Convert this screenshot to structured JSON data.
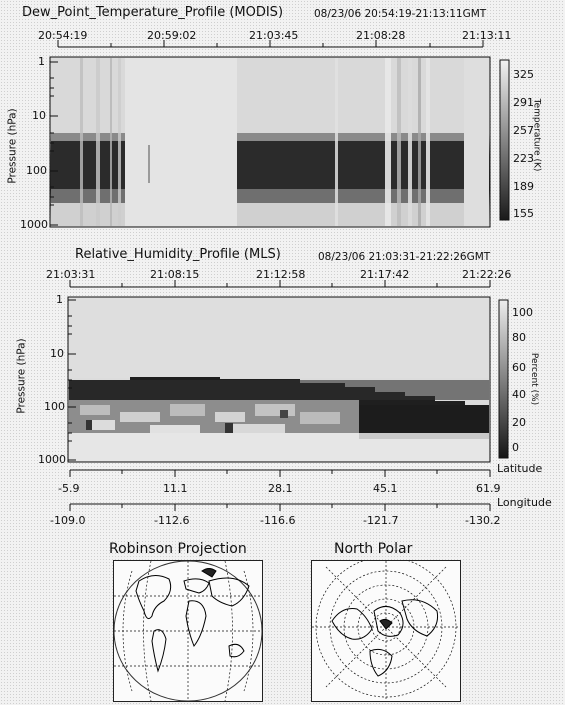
{
  "panel1": {
    "title": "Dew_Point_Temperature_Profile (MODIS)",
    "date_range": "08/23/06 20:54:19-21:13:11GMT",
    "time_ticks": [
      "20:54:19",
      "20:59:02",
      "21:03:45",
      "21:08:28",
      "21:13:11"
    ],
    "ylabel": "Pressure (hPa)",
    "y_ticks": [
      "1",
      "10",
      "100",
      "1000"
    ],
    "colorbar_ticks": [
      "325",
      "291",
      "257",
      "223",
      "189",
      "155"
    ],
    "colorbar_label": "Temperature (K)"
  },
  "panel2": {
    "title": "Relative_Humidity_Profile (MLS)",
    "date_range": "08/23/06 21:03:31-21:22:26GMT",
    "time_ticks": [
      "21:03:31",
      "21:08:15",
      "21:12:58",
      "21:17:42",
      "21:22:26"
    ],
    "ylabel": "Pressure (hPa)",
    "y_ticks": [
      "1",
      "10",
      "100",
      "1000"
    ],
    "colorbar_ticks": [
      "100",
      "80",
      "60",
      "40",
      "20",
      "0"
    ],
    "colorbar_label": "Percent (%)",
    "latitude_label": "Latitude",
    "latitude_ticks": [
      "-5.9",
      "11.1",
      "28.1",
      "45.1",
      "61.9"
    ],
    "longitude_label": "Longitude",
    "longitude_ticks": [
      "-109.0",
      "-112.6",
      "-116.6",
      "-121.7",
      "-130.2"
    ]
  },
  "maps": {
    "robinson_title": "Robinson  Projection",
    "polar_title": "North Polar"
  },
  "chart_data": [
    {
      "type": "heatmap",
      "title": "Dew_Point_Temperature_Profile (MODIS)",
      "subtitle": "08/23/06 20:54:19-21:13:11GMT",
      "x_ticks": [
        "20:54:19",
        "20:59:02",
        "21:03:45",
        "21:08:28",
        "21:13:11"
      ],
      "ylabel": "Pressure (hPa)",
      "y_scale": "log",
      "y_range": [
        1000,
        1
      ],
      "colorbar": {
        "label": "Temperature (K)",
        "range": [
          155,
          325
        ]
      },
      "dark_layer_pressure": [
        20,
        150
      ],
      "data_gaps_time": [
        [
          "20:57:10",
          "21:03:15"
        ]
      ]
    },
    {
      "type": "heatmap",
      "title": "Relative_Humidity_Profile (MLS)",
      "subtitle": "08/23/06 21:03:31-21:22:26GMT",
      "x_ticks": [
        "21:03:31",
        "21:08:15",
        "21:12:58",
        "21:17:42",
        "21:22:26"
      ],
      "x2_ticks_latitude": [
        -5.9,
        11.1,
        28.1,
        45.1,
        61.9
      ],
      "x3_ticks_longitude": [
        -109.0,
        -112.6,
        -116.6,
        -121.7,
        -130.2
      ],
      "ylabel": "Pressure (hPa)",
      "y_scale": "log",
      "y_range": [
        1000,
        1
      ],
      "colorbar": {
        "label": "Percent (%)",
        "range": [
          0,
          100
        ]
      },
      "dry_layer_top_pressure_by_time": [
        [
          0,
          30
        ],
        [
          0.2,
          28
        ],
        [
          0.4,
          30
        ],
        [
          0.6,
          40
        ],
        [
          0.8,
          55
        ],
        [
          1.0,
          80
        ]
      ],
      "dry_layer_bottom_pressure_by_time": [
        [
          0,
          300
        ],
        [
          0.3,
          310
        ],
        [
          0.5,
          240
        ],
        [
          0.7,
          150
        ],
        [
          1.0,
          120
        ]
      ]
    }
  ]
}
